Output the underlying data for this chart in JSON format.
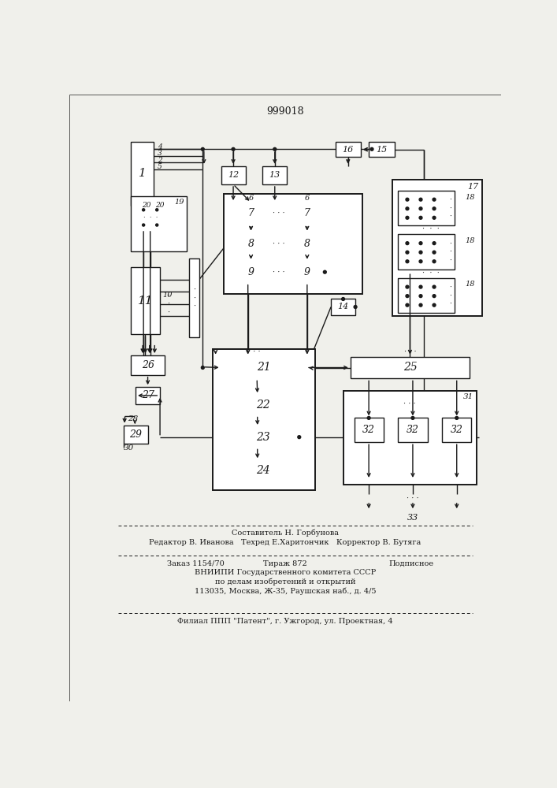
{
  "title": "999018",
  "bg_color": "#f0f0eb",
  "line_color": "#1a1a1a",
  "box_color": "#ffffff",
  "footer_lines": [
    "Составитель Н. Горбунова",
    "Редактор В. Иванова   Техред Е.Харитончик   Корректор В. Бутяга",
    "Заказ 1154/70       Тираж 872              Подписное",
    "ВНИИПИ Государственного комитета СССР",
    "по делам изобретений и открытий",
    "113035, Москва, Ж-35, Раушская наб., д. 4/5",
    "Филиал ППП \"Патент\", г. Ужгород, ул. Проектная, 4"
  ]
}
